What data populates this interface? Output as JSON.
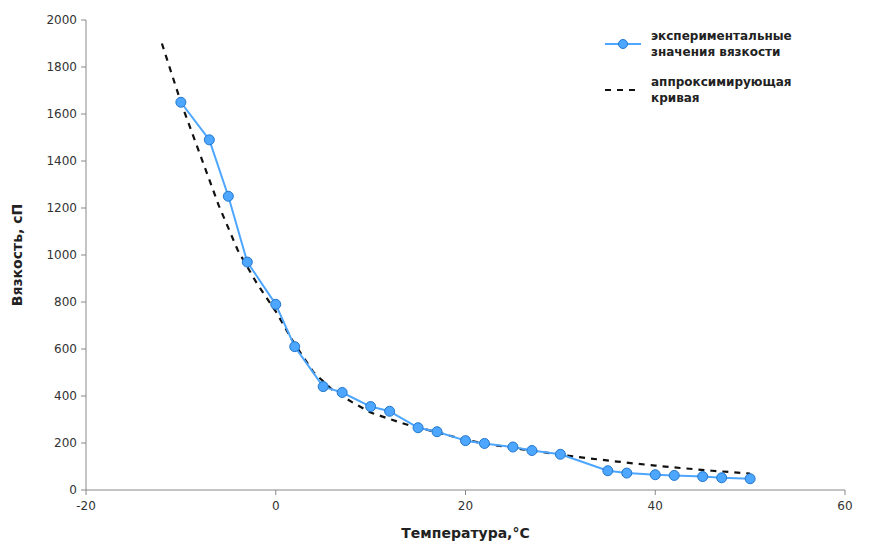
{
  "chart_data": {
    "type": "line",
    "x_label": "Температура,°C",
    "y_label": "Вязкость, сП",
    "series": [
      {
        "name": "экспериментальные\nзначения вязкости",
        "color": "#4DA6FF",
        "marker_color": "#2277CC",
        "marker": "circle",
        "line_style": "solid",
        "x": [
          -10,
          -7,
          -5,
          -3,
          0,
          2,
          5,
          7,
          10,
          12,
          15,
          17,
          20,
          22,
          25,
          27,
          30,
          35,
          37,
          40,
          42,
          45,
          47,
          50
        ],
        "values": [
          1650,
          1490,
          1250,
          970,
          790,
          610,
          440,
          415,
          355,
          335,
          265,
          248,
          210,
          198,
          183,
          168,
          152,
          82,
          72,
          65,
          62,
          57,
          52,
          48
        ]
      },
      {
        "name": "аппроксимирующая\nкривая",
        "color": "#111111",
        "line_style": "dashed",
        "x": [
          -12,
          -10,
          -8,
          -6,
          -4,
          -2,
          0,
          2,
          4,
          6,
          8,
          10,
          12,
          14,
          16,
          18,
          20,
          22,
          24,
          26,
          28,
          30,
          32,
          34,
          36,
          38,
          40,
          42,
          44,
          46,
          48,
          50
        ],
        "values": [
          1900,
          1650,
          1430,
          1210,
          1020,
          880,
          760,
          620,
          500,
          425,
          375,
          330,
          302,
          276,
          256,
          235,
          213,
          198,
          185,
          173,
          162,
          150,
          140,
          130,
          121,
          112,
          104,
          96,
          89,
          82,
          76,
          70
        ]
      }
    ],
    "xlim": [
      -20,
      60
    ],
    "ylim": [
      0,
      2000
    ],
    "xticks": [
      -20,
      0,
      20,
      40,
      60
    ],
    "yticks": [
      0,
      200,
      400,
      600,
      800,
      1000,
      1200,
      1400,
      1600,
      1800,
      2000
    ],
    "grid": false,
    "legend": "upper right"
  }
}
